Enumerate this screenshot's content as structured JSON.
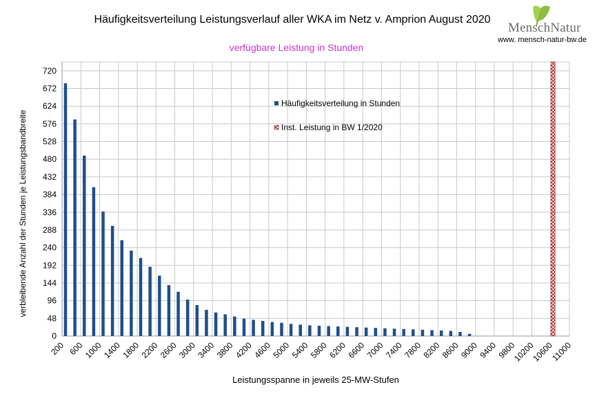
{
  "chart_data": {
    "type": "bar",
    "title": "Häufigkeitsverteilung Leistungsverlauf aller WKA im Netz v. Amprion August 2020",
    "subtitle": "verfügbare Leistung in Stunden",
    "xlabel": "Leistungsspanne in jeweils 25-MW-Stufen",
    "ylabel": "verbleibende Anzahl der Stunden je Leistungsbandbreite",
    "ylim": [
      0,
      744
    ],
    "yticks": [
      0,
      48,
      96,
      144,
      192,
      240,
      288,
      336,
      384,
      432,
      480,
      528,
      576,
      624,
      672,
      720
    ],
    "xlim": [
      200,
      11000
    ],
    "xticks": [
      200,
      600,
      1000,
      1400,
      1800,
      2200,
      2600,
      3000,
      3400,
      3800,
      4200,
      4600,
      5000,
      5400,
      5800,
      6200,
      6600,
      7000,
      7400,
      7800,
      8200,
      8600,
      9000,
      9400,
      9800,
      10200,
      10600,
      11000
    ],
    "grid": true,
    "legend_position": "top-center",
    "series": [
      {
        "name": "Häufigkeitsverteilung in Stunden",
        "color": "#1f4e8c",
        "x": [
          200,
          400,
          600,
          800,
          1000,
          1200,
          1400,
          1600,
          1800,
          2000,
          2200,
          2400,
          2600,
          2800,
          3000,
          3200,
          3400,
          3600,
          3800,
          4000,
          4200,
          4400,
          4600,
          4800,
          5000,
          5200,
          5400,
          5600,
          5800,
          6000,
          6200,
          6400,
          6600,
          6800,
          7000,
          7200,
          7400,
          7600,
          7800,
          8000,
          8200,
          8400,
          8600,
          8800
        ],
        "values": [
          686,
          588,
          490,
          404,
          338,
          299,
          260,
          232,
          212,
          188,
          164,
          138,
          120,
          99,
          84,
          71,
          64,
          59,
          53,
          47,
          44,
          41,
          38,
          36,
          33,
          31,
          29,
          28,
          27,
          26,
          25,
          24,
          23,
          22,
          21,
          20,
          19,
          18,
          17,
          16,
          15,
          14,
          11,
          6
        ]
      },
      {
        "name": "Inst. Leistung in BW 1/2020",
        "color": "#a01818",
        "x_value": 10650
      }
    ]
  },
  "logo": {
    "text": "MenschNatur",
    "icon": "ginkgo-leaf-icon"
  },
  "website": "www. mensch-natur-bw.de"
}
